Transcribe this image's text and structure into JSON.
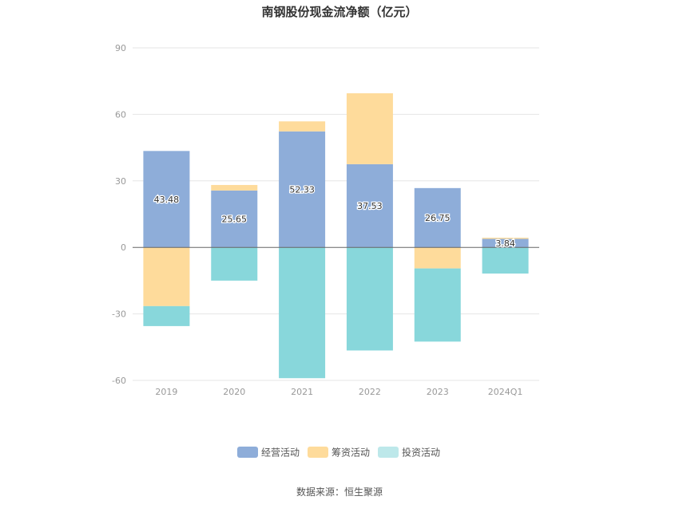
{
  "chart_data": {
    "type": "bar",
    "stacked": true,
    "title": "南钢股份现金流净额（亿元）",
    "categories": [
      "2019",
      "2020",
      "2021",
      "2022",
      "2023",
      "2024Q1"
    ],
    "ylim": [
      -60,
      90
    ],
    "yticks": [
      90,
      60,
      30,
      0,
      -30,
      -60
    ],
    "grid": true,
    "legend_position": "bottom",
    "series": [
      {
        "name": "经营活动",
        "color": "#8eadd9",
        "values": [
          43.48,
          25.65,
          52.33,
          37.53,
          26.75,
          3.84
        ],
        "labels": [
          "43.48",
          "25.65",
          "52.33",
          "37.53",
          "26.75",
          "3.84"
        ]
      },
      {
        "name": "筹资活动",
        "color": "#fedb9b",
        "values": [
          -26.5,
          2.5,
          4.5,
          32.0,
          -9.5,
          0.5
        ]
      },
      {
        "name": "投资活动",
        "color": "#88d7db",
        "legend_color": "#bde8ea",
        "values": [
          -9.0,
          -15.0,
          -59.0,
          -46.5,
          -33.0,
          -11.8
        ]
      }
    ]
  },
  "source_text": "数据来源：恒生聚源"
}
